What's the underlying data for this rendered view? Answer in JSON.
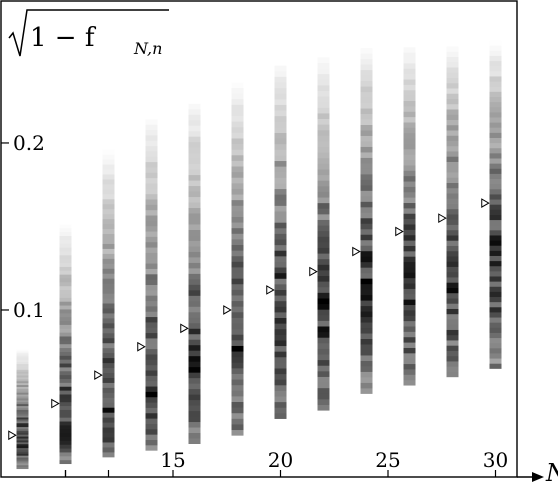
{
  "chart_data": {
    "type": "heatmap",
    "title": "",
    "xlabel": "N",
    "ylabel": "√(1 − f_{N,n})",
    "ylabel_display": "1 − f",
    "ylabel_sub": "N,n",
    "xlim": [
      7,
      31
    ],
    "ylim": [
      0,
      0.285
    ],
    "x_ticks": [
      5,
      10,
      15,
      20,
      25,
      30
    ],
    "x_tick_labels": [
      "",
      "",
      "15",
      "20",
      "25",
      "30"
    ],
    "y_ticks": [
      0.1,
      0.2
    ],
    "y_tick_labels": [
      "0.1",
      "0.2"
    ],
    "grid": false,
    "colormap": "grayscale (white = low density, black = high density)",
    "columns": [
      {
        "N": 8,
        "y_min": 0.005,
        "y_max": 0.085,
        "peak": 0.02
      },
      {
        "N": 10,
        "y_min": 0.008,
        "y_max": 0.17,
        "peak": 0.03
      },
      {
        "N": 12,
        "y_min": 0.012,
        "y_max": 0.22,
        "peak": 0.035
      },
      {
        "N": 14,
        "y_min": 0.016,
        "y_max": 0.24,
        "peak": 0.05
      },
      {
        "N": 16,
        "y_min": 0.02,
        "y_max": 0.25,
        "peak": 0.06
      },
      {
        "N": 18,
        "y_min": 0.025,
        "y_max": 0.26,
        "peak": 0.08
      },
      {
        "N": 20,
        "y_min": 0.035,
        "y_max": 0.27,
        "peak": 0.1
      },
      {
        "N": 22,
        "y_min": 0.04,
        "y_max": 0.275,
        "peak": 0.1
      },
      {
        "N": 24,
        "y_min": 0.05,
        "y_max": 0.28,
        "peak": 0.115
      },
      {
        "N": 26,
        "y_min": 0.055,
        "y_max": 0.28,
        "peak": 0.115
      },
      {
        "N": 28,
        "y_min": 0.06,
        "y_max": 0.28,
        "peak": 0.12
      },
      {
        "N": 30,
        "y_min": 0.065,
        "y_max": 0.28,
        "peak": 0.13
      }
    ],
    "series": [
      {
        "marker": "triangle-right (open)",
        "x": [
          7.5,
          9.5,
          11.5,
          13.5,
          15.5,
          17.5,
          19.5,
          21.5,
          23.5,
          25.5,
          27.5,
          29.5
        ],
        "y": [
          0.025,
          0.044,
          0.061,
          0.078,
          0.089,
          0.1,
          0.112,
          0.123,
          0.135,
          0.147,
          0.155,
          0.164
        ]
      }
    ]
  }
}
